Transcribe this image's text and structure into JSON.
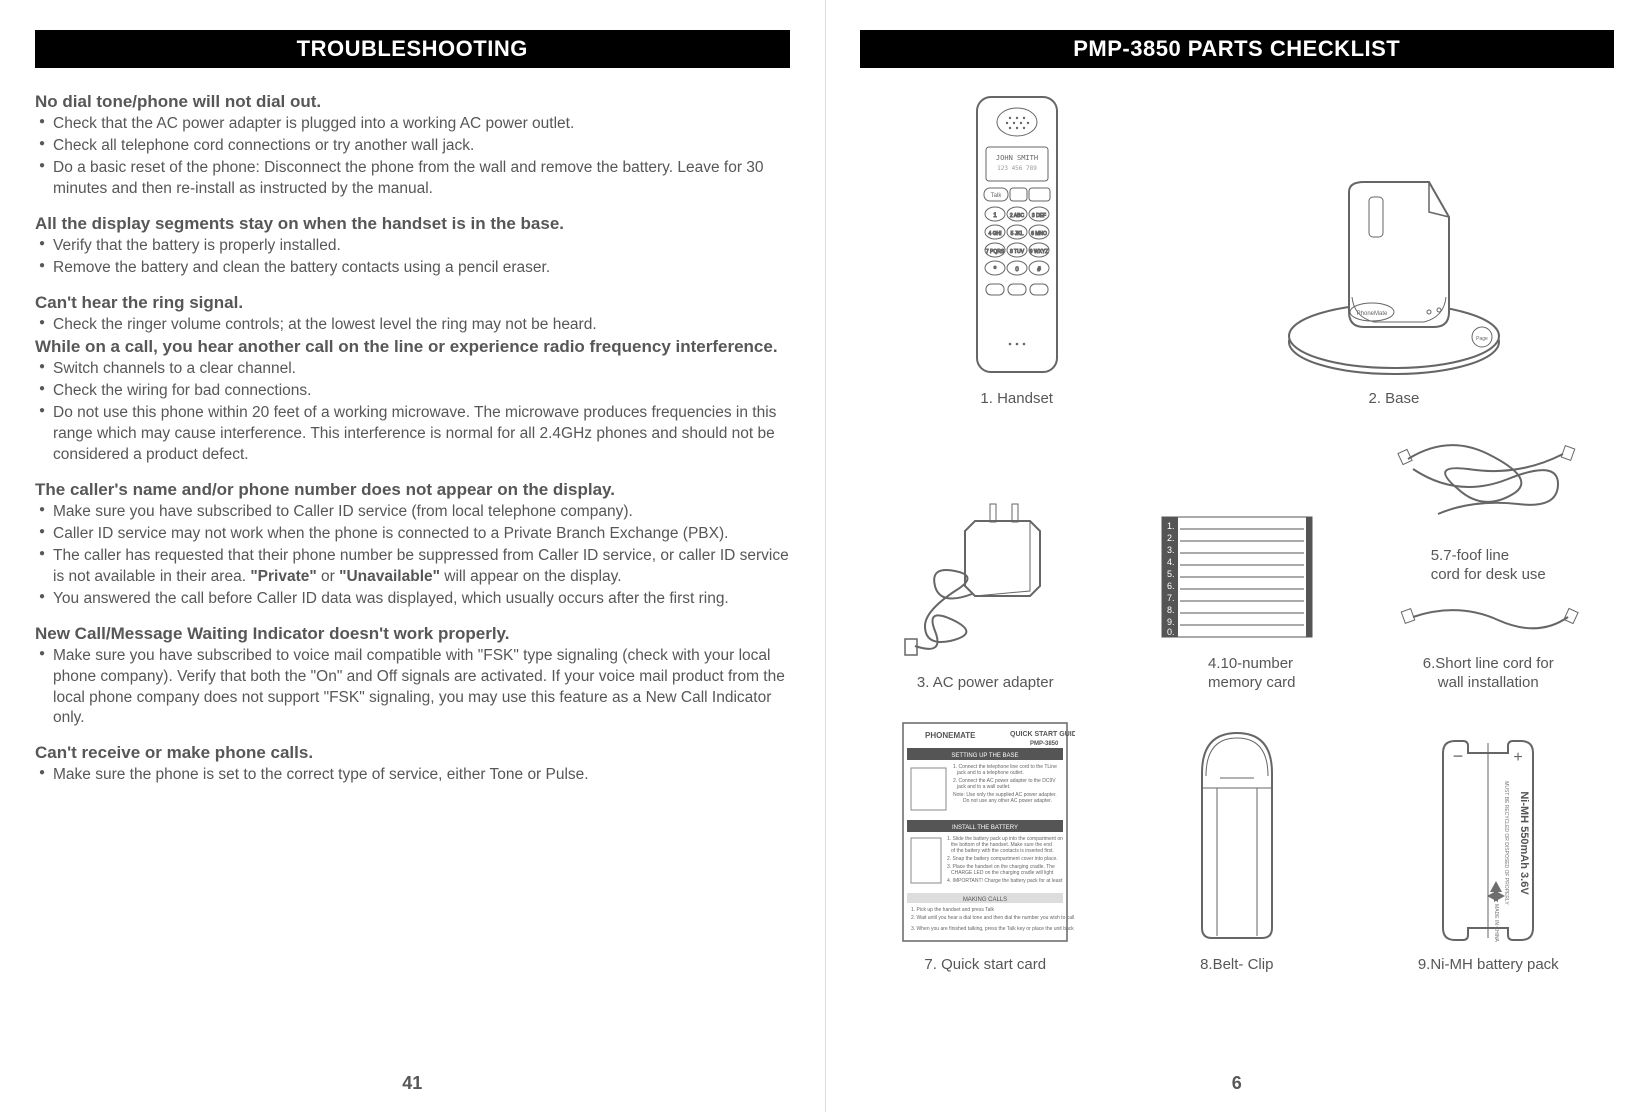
{
  "left": {
    "header": "TROUBLESHOOTING",
    "page_num": "41",
    "sections": [
      {
        "head": "No dial tone/phone will not dial out.",
        "bullets": [
          "Check that the AC power adapter is plugged into a working AC power outlet.",
          "Check all telephone cord connections or try another wall jack.",
          "Do a basic reset of the phone: Disconnect the phone from the wall and remove the battery. Leave for 30 minutes and then re-install as instructed by the manual."
        ]
      },
      {
        "head": "All the display segments stay on when the handset is in the base.",
        "bullets": [
          "Verify that the battery is properly installed.",
          "Remove the battery and clean the battery contacts using a pencil eraser."
        ]
      },
      {
        "head": "Can't hear the ring signal.",
        "bullets": [
          "Check the ringer volume controls; at the lowest level the ring may not be heard."
        ],
        "subhead": "While on a call, you hear another call on the line or experience radio frequency interference.",
        "bullets2": [
          "Switch channels to a clear channel.",
          "Check the wiring for bad connections.",
          "Do not use this phone within 20 feet of a working microwave. The microwave produces frequencies in this range which may cause interference. This interference is normal for all 2.4GHz phones and should not be considered a product defect."
        ]
      },
      {
        "head": "The caller's name and/or phone number does not appear on the display.",
        "bullets": [
          "Make sure you have subscribed to Caller ID service (from local telephone company).",
          "Caller ID service may not work when the phone is connected to a Private Branch Exchange (PBX).",
          "The caller has requested that their phone number be suppressed from Caller ID service, or caller ID service is not available in their area. \"Private\" or \"Unavailable\" will appear on the display.",
          "You answered the call before Caller ID data was displayed, which usually occurs after the first ring."
        ],
        "bold_words": [
          "\"Private\"",
          "\"Unavailable\""
        ]
      },
      {
        "head": "New Call/Message Waiting Indicator doesn't work properly.",
        "bullets": [
          "Make sure you have subscribed to voice mail compatible with \"FSK\" type signaling (check with your local phone company). Verify that both the  \"On\"  and Off  signals are activated. If your voice mail product from the local phone company does not support \"FSK\" signaling, you may use this feature as a New Call Indicator only."
        ]
      },
      {
        "head": "Can't receive or make phone calls.",
        "bullets": [
          "Make sure the phone is set to the correct type of service, either Tone or Pulse."
        ]
      }
    ]
  },
  "right": {
    "header": "PMP-3850 PARTS CHECKLIST",
    "page_num": "6",
    "parts": {
      "p1": "1. Handset",
      "p2": "2. Base",
      "p3": "3. AC power adapter",
      "p4": "4.10-number\n    memory card",
      "p5": "5.7-foof line\n    cord for desk use",
      "p6": "6.Short line cord for\n    wall installation",
      "p7": "7. Quick start card",
      "p8": "8.Belt- Clip",
      "p9": "9.Ni-MH battery pack"
    },
    "handset_display": "JOHN SMITH",
    "memory_card_nums": [
      "1.",
      "2.",
      "3.",
      "4.",
      "5.",
      "6.",
      "7.",
      "8.",
      "9.",
      "0."
    ],
    "battery_text": "Ni-MH 550mAh 3.6V",
    "quick_start_title": "QUICK START GUIDE",
    "quick_start_model": "PMP-3850",
    "quick_start_sec1": "SETTING UP THE BASE",
    "quick_start_sec2": "INSTALL THE BATTERY",
    "quick_start_sec3": "MAKING CALLS"
  },
  "colors": {
    "text": "#575757",
    "bg": "#ffffff",
    "header_bg": "#000000",
    "header_fg": "#ffffff",
    "line": "#666666"
  }
}
